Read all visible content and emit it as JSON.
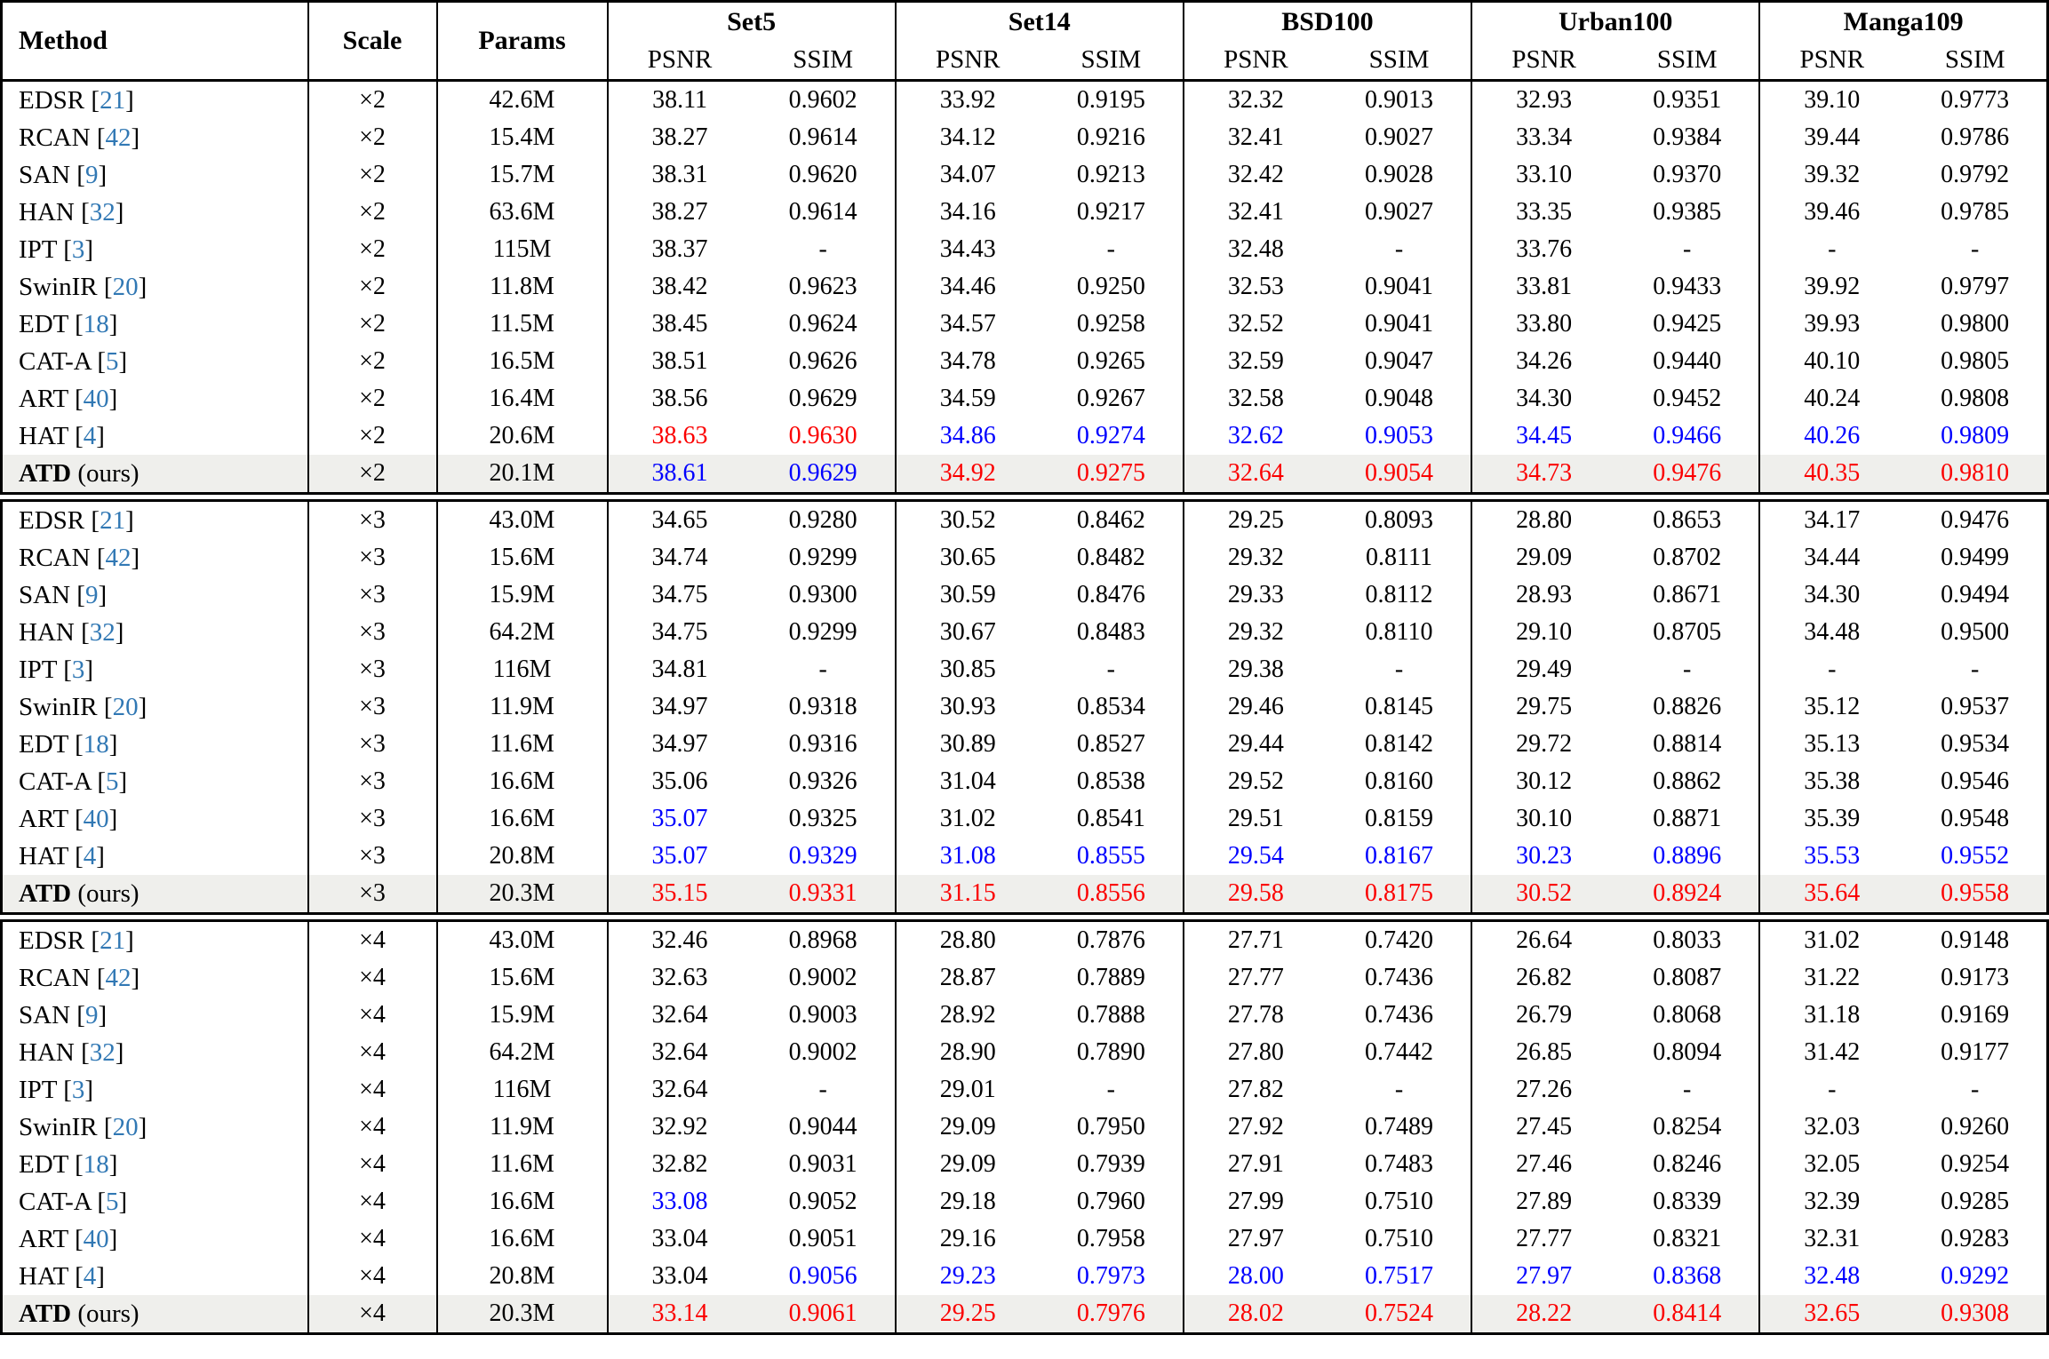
{
  "table": {
    "columns": {
      "method": "Method",
      "scale": "Scale",
      "params": "Params",
      "metrics": [
        "PSNR",
        "SSIM"
      ],
      "datasets": [
        "Set5",
        "Set14",
        "BSD100",
        "Urban100",
        "Manga109"
      ]
    },
    "legend_colors": {
      "best": "#fb0000",
      "second_best": "#0000fe",
      "citation": "#3178b4",
      "ours_row_bg": "#efefec"
    },
    "color_key": {
      ".": "default-black",
      "r": "best-red",
      "b": "second-best-blue"
    },
    "blocks": [
      {
        "scale_label": "×2",
        "rows": [
          {
            "method": "EDSR",
            "ref": "21",
            "suffix": "",
            "ours": false,
            "scale": "×2",
            "params": "42.6M",
            "vals": [
              "38.11",
              "0.9602",
              "33.92",
              "0.9195",
              "32.32",
              "0.9013",
              "32.93",
              "0.9351",
              "39.10",
              "0.9773"
            ],
            "colors": ".........."
          },
          {
            "method": "RCAN",
            "ref": "42",
            "suffix": "",
            "ours": false,
            "scale": "×2",
            "params": "15.4M",
            "vals": [
              "38.27",
              "0.9614",
              "34.12",
              "0.9216",
              "32.41",
              "0.9027",
              "33.34",
              "0.9384",
              "39.44",
              "0.9786"
            ],
            "colors": ".........."
          },
          {
            "method": "SAN",
            "ref": "9",
            "suffix": "",
            "ours": false,
            "scale": "×2",
            "params": "15.7M",
            "vals": [
              "38.31",
              "0.9620",
              "34.07",
              "0.9213",
              "32.42",
              "0.9028",
              "33.10",
              "0.9370",
              "39.32",
              "0.9792"
            ],
            "colors": ".........."
          },
          {
            "method": "HAN",
            "ref": "32",
            "suffix": "",
            "ours": false,
            "scale": "×2",
            "params": "63.6M",
            "vals": [
              "38.27",
              "0.9614",
              "34.16",
              "0.9217",
              "32.41",
              "0.9027",
              "33.35",
              "0.9385",
              "39.46",
              "0.9785"
            ],
            "colors": ".........."
          },
          {
            "method": "IPT",
            "ref": "3",
            "suffix": "",
            "ours": false,
            "scale": "×2",
            "params": "115M",
            "vals": [
              "38.37",
              "-",
              "34.43",
              "-",
              "32.48",
              "-",
              "33.76",
              "-",
              "-",
              "-"
            ],
            "colors": ".........."
          },
          {
            "method": "SwinIR",
            "ref": "20",
            "suffix": "",
            "ours": false,
            "scale": "×2",
            "params": "11.8M",
            "vals": [
              "38.42",
              "0.9623",
              "34.46",
              "0.9250",
              "32.53",
              "0.9041",
              "33.81",
              "0.9433",
              "39.92",
              "0.9797"
            ],
            "colors": ".........."
          },
          {
            "method": "EDT",
            "ref": "18",
            "suffix": "",
            "ours": false,
            "scale": "×2",
            "params": "11.5M",
            "vals": [
              "38.45",
              "0.9624",
              "34.57",
              "0.9258",
              "32.52",
              "0.9041",
              "33.80",
              "0.9425",
              "39.93",
              "0.9800"
            ],
            "colors": ".........."
          },
          {
            "method": "CAT-A",
            "ref": "5",
            "suffix": "",
            "ours": false,
            "scale": "×2",
            "params": "16.5M",
            "vals": [
              "38.51",
              "0.9626",
              "34.78",
              "0.9265",
              "32.59",
              "0.9047",
              "34.26",
              "0.9440",
              "40.10",
              "0.9805"
            ],
            "colors": ".........."
          },
          {
            "method": "ART",
            "ref": "40",
            "suffix": "",
            "ours": false,
            "scale": "×2",
            "params": "16.4M",
            "vals": [
              "38.56",
              "0.9629",
              "34.59",
              "0.9267",
              "32.58",
              "0.9048",
              "34.30",
              "0.9452",
              "40.24",
              "0.9808"
            ],
            "colors": ".........."
          },
          {
            "method": "HAT",
            "ref": "4",
            "suffix": "",
            "ours": false,
            "scale": "×2",
            "params": "20.6M",
            "vals": [
              "38.63",
              "0.9630",
              "34.86",
              "0.9274",
              "32.62",
              "0.9053",
              "34.45",
              "0.9466",
              "40.26",
              "0.9809"
            ],
            "colors": "rrbbbbbbbb"
          },
          {
            "method": "ATD",
            "ref": "",
            "suffix": "(ours)",
            "ours": true,
            "scale": "×2",
            "params": "20.1M",
            "vals": [
              "38.61",
              "0.9629",
              "34.92",
              "0.9275",
              "32.64",
              "0.9054",
              "34.73",
              "0.9476",
              "40.35",
              "0.9810"
            ],
            "colors": "bbrrrrrrrr"
          }
        ]
      },
      {
        "scale_label": "×3",
        "rows": [
          {
            "method": "EDSR",
            "ref": "21",
            "suffix": "",
            "ours": false,
            "scale": "×3",
            "params": "43.0M",
            "vals": [
              "34.65",
              "0.9280",
              "30.52",
              "0.8462",
              "29.25",
              "0.8093",
              "28.80",
              "0.8653",
              "34.17",
              "0.9476"
            ],
            "colors": ".........."
          },
          {
            "method": "RCAN",
            "ref": "42",
            "suffix": "",
            "ours": false,
            "scale": "×3",
            "params": "15.6M",
            "vals": [
              "34.74",
              "0.9299",
              "30.65",
              "0.8482",
              "29.32",
              "0.8111",
              "29.09",
              "0.8702",
              "34.44",
              "0.9499"
            ],
            "colors": ".........."
          },
          {
            "method": "SAN",
            "ref": "9",
            "suffix": "",
            "ours": false,
            "scale": "×3",
            "params": "15.9M",
            "vals": [
              "34.75",
              "0.9300",
              "30.59",
              "0.8476",
              "29.33",
              "0.8112",
              "28.93",
              "0.8671",
              "34.30",
              "0.9494"
            ],
            "colors": ".........."
          },
          {
            "method": "HAN",
            "ref": "32",
            "suffix": "",
            "ours": false,
            "scale": "×3",
            "params": "64.2M",
            "vals": [
              "34.75",
              "0.9299",
              "30.67",
              "0.8483",
              "29.32",
              "0.8110",
              "29.10",
              "0.8705",
              "34.48",
              "0.9500"
            ],
            "colors": ".........."
          },
          {
            "method": "IPT",
            "ref": "3",
            "suffix": "",
            "ours": false,
            "scale": "×3",
            "params": "116M",
            "vals": [
              "34.81",
              "-",
              "30.85",
              "-",
              "29.38",
              "-",
              "29.49",
              "-",
              "-",
              "-"
            ],
            "colors": ".........."
          },
          {
            "method": "SwinIR",
            "ref": "20",
            "suffix": "",
            "ours": false,
            "scale": "×3",
            "params": "11.9M",
            "vals": [
              "34.97",
              "0.9318",
              "30.93",
              "0.8534",
              "29.46",
              "0.8145",
              "29.75",
              "0.8826",
              "35.12",
              "0.9537"
            ],
            "colors": ".........."
          },
          {
            "method": "EDT",
            "ref": "18",
            "suffix": "",
            "ours": false,
            "scale": "×3",
            "params": "11.6M",
            "vals": [
              "34.97",
              "0.9316",
              "30.89",
              "0.8527",
              "29.44",
              "0.8142",
              "29.72",
              "0.8814",
              "35.13",
              "0.9534"
            ],
            "colors": ".........."
          },
          {
            "method": "CAT-A",
            "ref": "5",
            "suffix": "",
            "ours": false,
            "scale": "×3",
            "params": "16.6M",
            "vals": [
              "35.06",
              "0.9326",
              "31.04",
              "0.8538",
              "29.52",
              "0.8160",
              "30.12",
              "0.8862",
              "35.38",
              "0.9546"
            ],
            "colors": ".........."
          },
          {
            "method": "ART",
            "ref": "40",
            "suffix": "",
            "ours": false,
            "scale": "×3",
            "params": "16.6M",
            "vals": [
              "35.07",
              "0.9325",
              "31.02",
              "0.8541",
              "29.51",
              "0.8159",
              "30.10",
              "0.8871",
              "35.39",
              "0.9548"
            ],
            "colors": "b........."
          },
          {
            "method": "HAT",
            "ref": "4",
            "suffix": "",
            "ours": false,
            "scale": "×3",
            "params": "20.8M",
            "vals": [
              "35.07",
              "0.9329",
              "31.08",
              "0.8555",
              "29.54",
              "0.8167",
              "30.23",
              "0.8896",
              "35.53",
              "0.9552"
            ],
            "colors": "bbbbbbbbbb"
          },
          {
            "method": "ATD",
            "ref": "",
            "suffix": "(ours)",
            "ours": true,
            "scale": "×3",
            "params": "20.3M",
            "vals": [
              "35.15",
              "0.9331",
              "31.15",
              "0.8556",
              "29.58",
              "0.8175",
              "30.52",
              "0.8924",
              "35.64",
              "0.9558"
            ],
            "colors": "rrrrrrrrrr"
          }
        ]
      },
      {
        "scale_label": "×4",
        "rows": [
          {
            "method": "EDSR",
            "ref": "21",
            "suffix": "",
            "ours": false,
            "scale": "×4",
            "params": "43.0M",
            "vals": [
              "32.46",
              "0.8968",
              "28.80",
              "0.7876",
              "27.71",
              "0.7420",
              "26.64",
              "0.8033",
              "31.02",
              "0.9148"
            ],
            "colors": ".........."
          },
          {
            "method": "RCAN",
            "ref": "42",
            "suffix": "",
            "ours": false,
            "scale": "×4",
            "params": "15.6M",
            "vals": [
              "32.63",
              "0.9002",
              "28.87",
              "0.7889",
              "27.77",
              "0.7436",
              "26.82",
              "0.8087",
              "31.22",
              "0.9173"
            ],
            "colors": ".........."
          },
          {
            "method": "SAN",
            "ref": "9",
            "suffix": "",
            "ours": false,
            "scale": "×4",
            "params": "15.9M",
            "vals": [
              "32.64",
              "0.9003",
              "28.92",
              "0.7888",
              "27.78",
              "0.7436",
              "26.79",
              "0.8068",
              "31.18",
              "0.9169"
            ],
            "colors": ".........."
          },
          {
            "method": "HAN",
            "ref": "32",
            "suffix": "",
            "ours": false,
            "scale": "×4",
            "params": "64.2M",
            "vals": [
              "32.64",
              "0.9002",
              "28.90",
              "0.7890",
              "27.80",
              "0.7442",
              "26.85",
              "0.8094",
              "31.42",
              "0.9177"
            ],
            "colors": ".........."
          },
          {
            "method": "IPT",
            "ref": "3",
            "suffix": "",
            "ours": false,
            "scale": "×4",
            "params": "116M",
            "vals": [
              "32.64",
              "-",
              "29.01",
              "-",
              "27.82",
              "-",
              "27.26",
              "-",
              "-",
              "-"
            ],
            "colors": ".........."
          },
          {
            "method": "SwinIR",
            "ref": "20",
            "suffix": "",
            "ours": false,
            "scale": "×4",
            "params": "11.9M",
            "vals": [
              "32.92",
              "0.9044",
              "29.09",
              "0.7950",
              "27.92",
              "0.7489",
              "27.45",
              "0.8254",
              "32.03",
              "0.9260"
            ],
            "colors": ".........."
          },
          {
            "method": "EDT",
            "ref": "18",
            "suffix": "",
            "ours": false,
            "scale": "×4",
            "params": "11.6M",
            "vals": [
              "32.82",
              "0.9031",
              "29.09",
              "0.7939",
              "27.91",
              "0.7483",
              "27.46",
              "0.8246",
              "32.05",
              "0.9254"
            ],
            "colors": ".........."
          },
          {
            "method": "CAT-A",
            "ref": "5",
            "suffix": "",
            "ours": false,
            "scale": "×4",
            "params": "16.6M",
            "vals": [
              "33.08",
              "0.9052",
              "29.18",
              "0.7960",
              "27.99",
              "0.7510",
              "27.89",
              "0.8339",
              "32.39",
              "0.9285"
            ],
            "colors": "b........."
          },
          {
            "method": "ART",
            "ref": "40",
            "suffix": "",
            "ours": false,
            "scale": "×4",
            "params": "16.6M",
            "vals": [
              "33.04",
              "0.9051",
              "29.16",
              "0.7958",
              "27.97",
              "0.7510",
              "27.77",
              "0.8321",
              "32.31",
              "0.9283"
            ],
            "colors": ".........."
          },
          {
            "method": "HAT",
            "ref": "4",
            "suffix": "",
            "ours": false,
            "scale": "×4",
            "params": "20.8M",
            "vals": [
              "33.04",
              "0.9056",
              "29.23",
              "0.7973",
              "28.00",
              "0.7517",
              "27.97",
              "0.8368",
              "32.48",
              "0.9292"
            ],
            "colors": ".bbbbbbbbb"
          },
          {
            "method": "ATD",
            "ref": "",
            "suffix": "(ours)",
            "ours": true,
            "scale": "×4",
            "params": "20.3M",
            "vals": [
              "33.14",
              "0.9061",
              "29.25",
              "0.7976",
              "28.02",
              "0.7524",
              "28.22",
              "0.8414",
              "32.65",
              "0.9308"
            ],
            "colors": "rrrrrrrrrr"
          }
        ]
      }
    ]
  }
}
